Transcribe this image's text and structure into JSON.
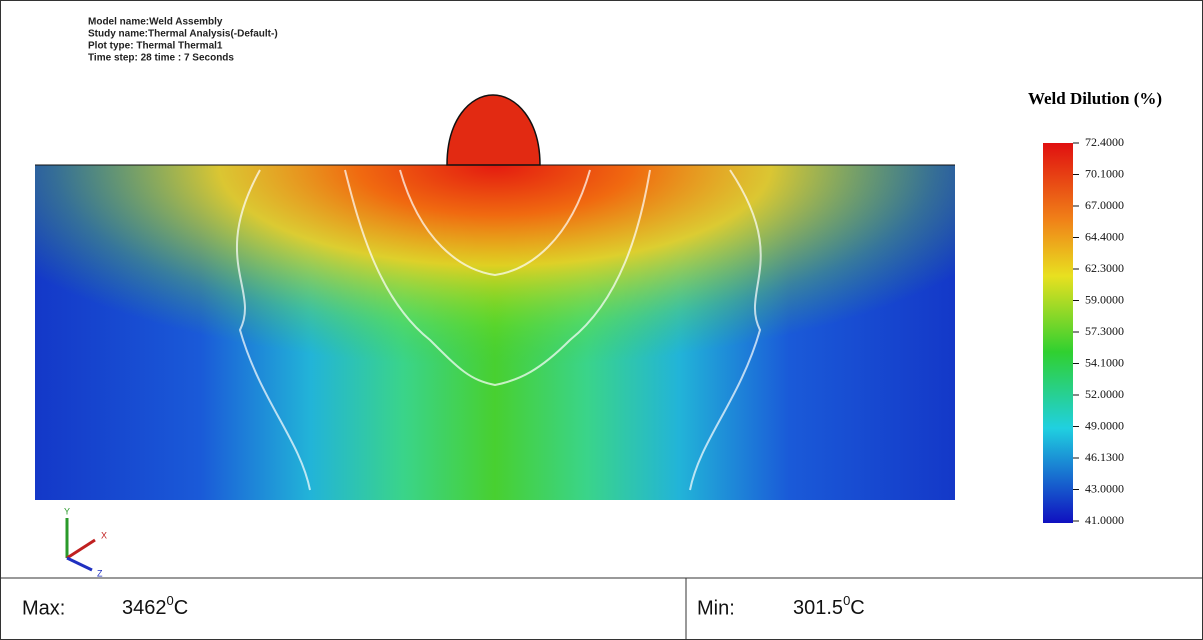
{
  "header": {
    "lines": [
      "Model name:Weld Assembly",
      "Study name:Thermal Analysis(-Default-)",
      "Plot type: Thermal Thermal1",
      "Time step: 28   time : 7 Seconds"
    ]
  },
  "legend": {
    "title": "Weld Dilution (%)",
    "ticks": [
      "72.4000",
      "70.1000",
      "67.0000",
      "64.4000",
      "62.3000",
      "59.0000",
      "57.3000",
      "54.1000",
      "52.0000",
      "49.0000",
      "46.1300",
      "43.0000",
      "41.0000"
    ]
  },
  "triad": {
    "y": "Y",
    "x": "X",
    "z": "Z"
  },
  "footer": {
    "max": {
      "label": "Max:",
      "value": "3462",
      "sup": "0",
      "unit": "C"
    },
    "min": {
      "label": "Min:",
      "value": "301.5",
      "sup": "0",
      "unit": "C"
    }
  }
}
